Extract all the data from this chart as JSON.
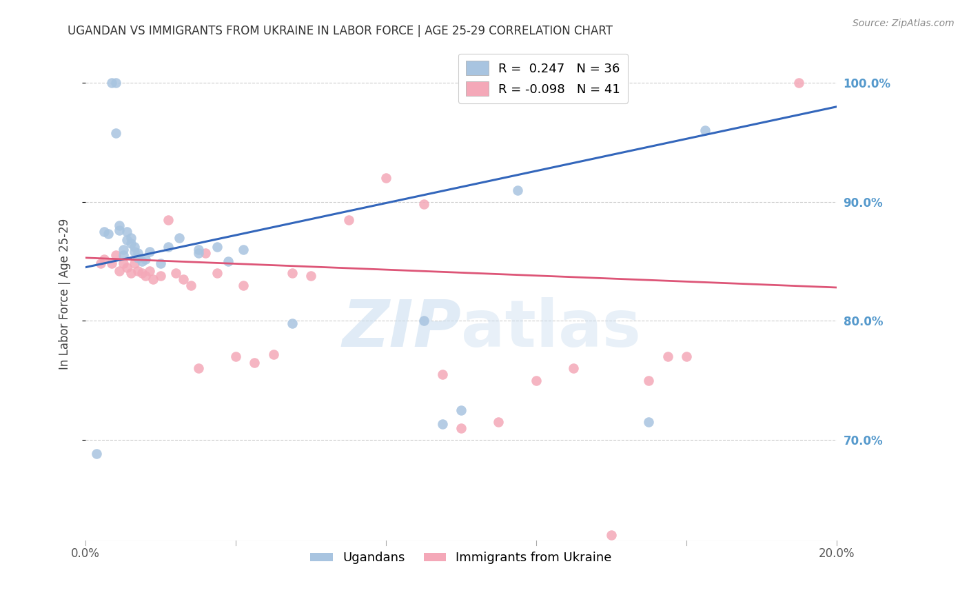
{
  "title": "UGANDAN VS IMMIGRANTS FROM UKRAINE IN LABOR FORCE | AGE 25-29 CORRELATION CHART",
  "source": "Source: ZipAtlas.com",
  "ylabel": "In Labor Force | Age 25-29",
  "xlim": [
    0.0,
    0.2
  ],
  "ylim": [
    0.615,
    1.03
  ],
  "xtick_vals": [
    0.0,
    0.04,
    0.08,
    0.12,
    0.16,
    0.2
  ],
  "ytick_vals": [
    0.7,
    0.8,
    0.9,
    1.0
  ],
  "ytick_labels": [
    "70.0%",
    "80.0%",
    "90.0%",
    "100.0%"
  ],
  "legend_blue_label": "Ugandans",
  "legend_pink_label": "Immigrants from Ukraine",
  "R_blue": 0.247,
  "N_blue": 36,
  "R_pink": -0.098,
  "N_pink": 41,
  "blue_color": "#a8c4e0",
  "pink_color": "#f4a8b8",
  "blue_line_color": "#3366bb",
  "pink_line_color": "#dd5577",
  "grid_color": "#cccccc",
  "right_tick_color": "#5599cc",
  "watermark_color": "#ccdff0",
  "blue_scatter_x": [
    0.003,
    0.005,
    0.006,
    0.007,
    0.008,
    0.008,
    0.009,
    0.009,
    0.01,
    0.01,
    0.011,
    0.011,
    0.012,
    0.012,
    0.013,
    0.013,
    0.014,
    0.014,
    0.015,
    0.016,
    0.017,
    0.02,
    0.022,
    0.025,
    0.03,
    0.03,
    0.035,
    0.038,
    0.042,
    0.055,
    0.09,
    0.095,
    0.1,
    0.115,
    0.15,
    0.165
  ],
  "blue_scatter_y": [
    0.688,
    0.875,
    0.873,
    1.0,
    1.0,
    0.958,
    0.88,
    0.876,
    0.86,
    0.855,
    0.875,
    0.868,
    0.87,
    0.865,
    0.858,
    0.862,
    0.853,
    0.857,
    0.85,
    0.852,
    0.858,
    0.848,
    0.862,
    0.87,
    0.857,
    0.86,
    0.862,
    0.85,
    0.86,
    0.798,
    0.8,
    0.713,
    0.725,
    0.91,
    0.715,
    0.96
  ],
  "pink_scatter_x": [
    0.004,
    0.005,
    0.007,
    0.008,
    0.009,
    0.01,
    0.011,
    0.012,
    0.013,
    0.014,
    0.015,
    0.016,
    0.017,
    0.018,
    0.02,
    0.022,
    0.024,
    0.026,
    0.028,
    0.03,
    0.032,
    0.035,
    0.04,
    0.042,
    0.045,
    0.05,
    0.055,
    0.06,
    0.07,
    0.08,
    0.09,
    0.095,
    0.1,
    0.11,
    0.12,
    0.13,
    0.14,
    0.15,
    0.155,
    0.16,
    0.19
  ],
  "pink_scatter_y": [
    0.848,
    0.852,
    0.848,
    0.855,
    0.842,
    0.848,
    0.845,
    0.84,
    0.848,
    0.842,
    0.84,
    0.838,
    0.842,
    0.835,
    0.838,
    0.885,
    0.84,
    0.835,
    0.83,
    0.76,
    0.857,
    0.84,
    0.77,
    0.83,
    0.765,
    0.772,
    0.84,
    0.838,
    0.885,
    0.92,
    0.898,
    0.755,
    0.71,
    0.715,
    0.75,
    0.76,
    0.62,
    0.75,
    0.77,
    0.77,
    1.0
  ],
  "blue_line_x": [
    0.0,
    0.2
  ],
  "blue_line_y": [
    0.845,
    0.98
  ],
  "pink_line_x": [
    0.0,
    0.2
  ],
  "pink_line_y": [
    0.853,
    0.828
  ]
}
